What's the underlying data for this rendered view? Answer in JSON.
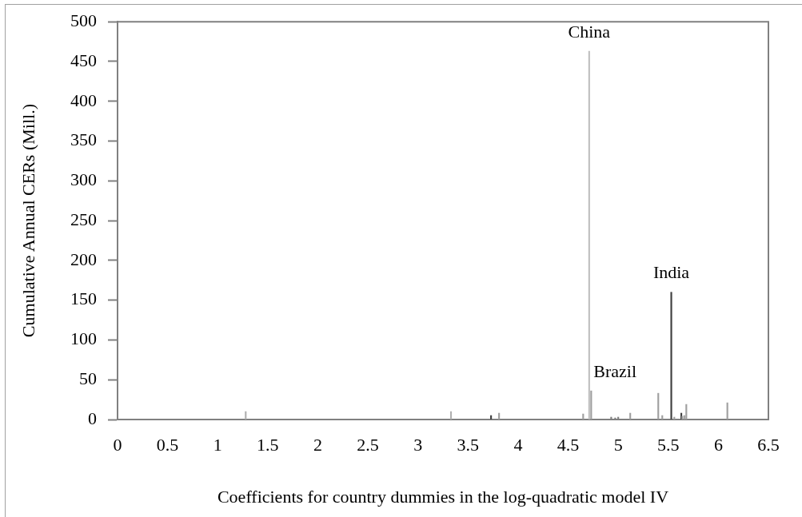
{
  "chart_data": {
    "type": "bar",
    "xlabel": "Coefficients for country dummies in the log-quadratic model IV",
    "ylabel": "Cumulative Annual CERs (Mill.)",
    "x": [
      1.28,
      3.33,
      3.73,
      3.81,
      4.65,
      4.71,
      4.73,
      4.93,
      4.97,
      5.0,
      5.12,
      5.4,
      5.44,
      5.53,
      5.56,
      5.63,
      5.64,
      5.66,
      5.68,
      6.09
    ],
    "values": [
      10,
      10,
      5,
      8,
      7,
      463,
      36,
      3,
      2,
      3,
      8,
      33,
      5,
      160,
      3,
      8,
      4,
      5,
      19,
      21
    ],
    "colors": [
      "#b0b0b0",
      "#b0b0b0",
      "#404040",
      "#a0a0a0",
      "#a0a0a0",
      "#c0c0c0",
      "#a0a0a0",
      "#808080",
      "#808080",
      "#808080",
      "#a0a0a0",
      "#a0a0a0",
      "#a0a0a0",
      "#404040",
      "#a0a0a0",
      "#404040",
      "#a0a0a0",
      "#a0a0a0",
      "#a0a0a0",
      "#a0a0a0"
    ],
    "xlim": [
      0,
      6.5
    ],
    "xticks": [
      0,
      0.5,
      1,
      1.5,
      2,
      2.5,
      3,
      3.5,
      4,
      4.5,
      5,
      5.5,
      6,
      6.5
    ],
    "ylim": [
      0,
      500
    ],
    "yticks": [
      0,
      50,
      100,
      150,
      200,
      250,
      300,
      350,
      400,
      450,
      500
    ],
    "annotations": [
      {
        "text": "China",
        "x": 4.71,
        "y": 463
      },
      {
        "text": "Brazil",
        "x": 4.73,
        "y": 36
      },
      {
        "text": "India",
        "x": 5.53,
        "y": 160
      }
    ]
  }
}
